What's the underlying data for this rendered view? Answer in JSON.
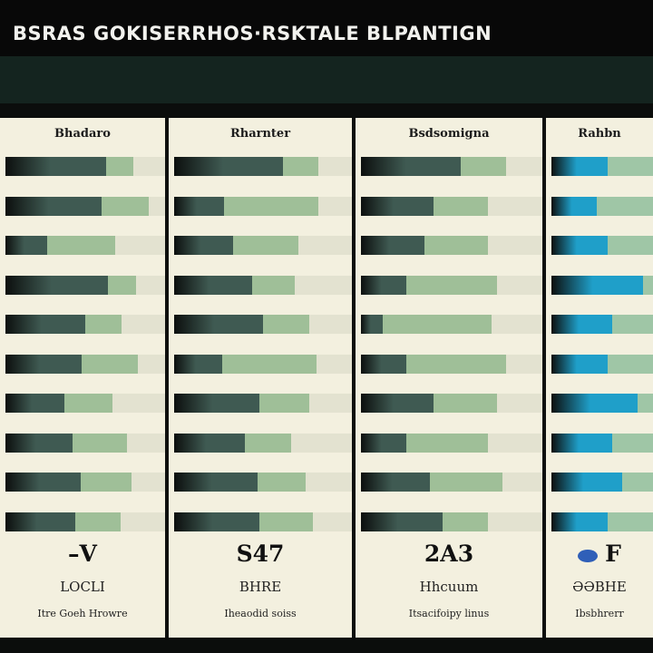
{
  "title": "BSRAS GOKISERRHOS·RSKTALE BLPANTIGN",
  "colors": {
    "dark": "#3f5a52",
    "mid": "#9fbf98",
    "light": "#e3e2d0",
    "blue_dark": "#1f9fc9",
    "blue_mid": "#9fc6a6",
    "panel_bg": "#f3f0df",
    "header_band": "#14241f"
  },
  "chart_data": {
    "type": "bar",
    "stacked": true,
    "orientation": "horizontal",
    "grid": false,
    "xlim": [
      0,
      100
    ],
    "panels": [
      {
        "header": "Bhadaro",
        "big_value": "–V",
        "sub_label": "LOCLI",
        "note": "Itre Goeh Hrowre",
        "series": [
          {
            "values": [
              63,
              60,
              26,
              64,
              50,
              48,
              37,
              42,
              47,
              44
            ]
          },
          {
            "values": [
              17,
              30,
              43,
              18,
              23,
              35,
              30,
              34,
              32,
              28
            ]
          },
          {
            "values": [
              20,
              10,
              31,
              18,
              27,
              17,
              33,
              24,
              21,
              28
            ]
          }
        ]
      },
      {
        "header": "Rharnter",
        "big_value": "S47",
        "sub_label": "BHRE",
        "note": "Iheaodid soiss",
        "series": [
          {
            "values": [
              61,
              28,
              33,
              44,
              50,
              27,
              48,
              40,
              47,
              48
            ]
          },
          {
            "values": [
              20,
              53,
              37,
              24,
              26,
              53,
              28,
              26,
              27,
              30
            ]
          },
          {
            "values": [
              19,
              19,
              30,
              32,
              24,
              20,
              24,
              34,
              26,
              22
            ]
          }
        ]
      },
      {
        "header": "Bsdsomigna",
        "big_value": "2A3",
        "sub_label": "Hhcuum",
        "note": "Itsacifoipy linus",
        "series": [
          {
            "values": [
              55,
              40,
              35,
              25,
              12,
              25,
              40,
              25,
              38,
              45
            ]
          },
          {
            "values": [
              25,
              30,
              35,
              50,
              60,
              55,
              35,
              45,
              40,
              25
            ]
          },
          {
            "values": [
              20,
              30,
              30,
              25,
              28,
              20,
              25,
              30,
              22,
              30
            ]
          }
        ]
      },
      {
        "header": "Rahbn",
        "big_value": "F",
        "sub_label": "ƏƏBHE",
        "note": "Ibsbhrerr",
        "series": [
          {
            "values": [
              55,
              45,
              55,
              90,
              60,
              55,
              85,
              60,
              70,
              55
            ]
          },
          {
            "values": [
              45,
              55,
              45,
              10,
              40,
              45,
              15,
              40,
              30,
              45
            ]
          }
        ]
      }
    ]
  }
}
